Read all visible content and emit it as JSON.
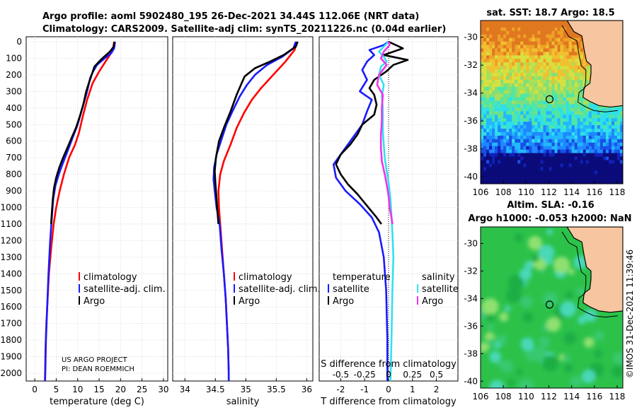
{
  "header": {
    "line1": "Argo profile: aoml 5902480_195 26-Dec-2021 34.44S 112.06E (NRT data)",
    "line2": "Climatology: CARS2009. Satellite-adj clim: synTS_20211226.nc (0.04d earlier)"
  },
  "colors": {
    "climatology": "#ff0000",
    "satellite": "#1a1aff",
    "argo": "#000000",
    "sat_cyan": "#33e0ee",
    "argo_magenta": "#ee33ee",
    "land": "#f7c59f"
  },
  "chart_data": [
    {
      "type": "line",
      "panel": "temperature",
      "xlabel": "temperature (deg C)",
      "xlim": [
        -2,
        31
      ],
      "xticks": [
        "0",
        "5",
        "10",
        "15",
        "20",
        "25",
        "30"
      ],
      "ylim": [
        0,
        2050
      ],
      "yticks": [
        "0",
        "100",
        "200",
        "300",
        "400",
        "500",
        "600",
        "700",
        "800",
        "900",
        "1000",
        "1100",
        "1200",
        "1300",
        "1400",
        "1500",
        "1600",
        "1700",
        "1800",
        "1900",
        "2000"
      ],
      "legend": [
        "climatology",
        "satellite-adj. clim.",
        "Argo"
      ],
      "annotation": [
        "US ARGO PROJECT",
        "PI: DEAN ROEMMICH"
      ],
      "series": [
        {
          "name": "climatology",
          "color": "#ff0000",
          "points": [
            [
              18.5,
              0
            ],
            [
              18.3,
              40
            ],
            [
              17.5,
              80
            ],
            [
              16.5,
              120
            ],
            [
              15,
              180
            ],
            [
              13.5,
              250
            ],
            [
              12.2,
              350
            ],
            [
              11.2,
              450
            ],
            [
              10.3,
              550
            ],
            [
              9.4,
              620
            ],
            [
              8,
              700
            ],
            [
              6.8,
              800
            ],
            [
              5.8,
              900
            ],
            [
              5,
              1000
            ],
            [
              4.4,
              1100
            ],
            [
              3.8,
              1250
            ],
            [
              3.3,
              1400
            ],
            [
              3,
              1550
            ],
            [
              2.7,
              1700
            ],
            [
              2.5,
              1850
            ],
            [
              2.4,
              2000
            ],
            [
              2.35,
              2050
            ]
          ]
        },
        {
          "name": "satellite-adj. clim.",
          "color": "#1a1aff",
          "points": [
            [
              18.7,
              0
            ],
            [
              18.5,
              40
            ],
            [
              17.8,
              70
            ],
            [
              16.3,
              100
            ],
            [
              14.5,
              140
            ],
            [
              13.6,
              180
            ],
            [
              12.9,
              220
            ],
            [
              12.2,
              300
            ],
            [
              11.1,
              400
            ],
            [
              10,
              500
            ],
            [
              8.8,
              580
            ],
            [
              7.8,
              650
            ],
            [
              6.6,
              730
            ],
            [
              5.6,
              800
            ],
            [
              4.8,
              870
            ],
            [
              4.3,
              950
            ],
            [
              4,
              1050
            ],
            [
              3.6,
              1200
            ],
            [
              3.2,
              1400
            ],
            [
              2.9,
              1600
            ],
            [
              2.6,
              1800
            ],
            [
              2.45,
              2000
            ],
            [
              2.4,
              2050
            ]
          ]
        },
        {
          "name": "Argo",
          "color": "#000000",
          "points": [
            [
              18.6,
              0
            ],
            [
              18.4,
              30
            ],
            [
              17.5,
              60
            ],
            [
              16.2,
              90
            ],
            [
              15,
              120
            ],
            [
              13.9,
              150
            ],
            [
              13.4,
              190
            ],
            [
              12.6,
              250
            ],
            [
              12,
              300
            ],
            [
              11.3,
              380
            ],
            [
              10.5,
              450
            ],
            [
              9.6,
              520
            ],
            [
              8.6,
              580
            ],
            [
              7.6,
              640
            ],
            [
              6.6,
              700
            ],
            [
              5.7,
              760
            ],
            [
              5,
              820
            ],
            [
              4.5,
              880
            ],
            [
              4.2,
              950
            ],
            [
              4,
              1020
            ],
            [
              3.8,
              1100
            ]
          ]
        }
      ]
    },
    {
      "type": "line",
      "panel": "salinity",
      "xlabel": "salinity",
      "xlim": [
        33.8,
        36.1
      ],
      "xticks": [
        "34",
        "34.5",
        "35",
        "35.5",
        "36"
      ],
      "ylim": [
        0,
        2050
      ],
      "legend": [
        "climatology",
        "satellite-adj. clim.",
        "Argo"
      ],
      "series": [
        {
          "name": "climatology",
          "color": "#ff0000",
          "points": [
            [
              35.84,
              0
            ],
            [
              35.8,
              50
            ],
            [
              35.65,
              120
            ],
            [
              35.45,
              200
            ],
            [
              35.25,
              280
            ],
            [
              35.1,
              350
            ],
            [
              34.97,
              430
            ],
            [
              34.85,
              520
            ],
            [
              34.75,
              620
            ],
            [
              34.64,
              720
            ],
            [
              34.58,
              800
            ],
            [
              34.55,
              900
            ],
            [
              34.56,
              1000
            ],
            [
              34.58,
              1100
            ],
            [
              34.61,
              1250
            ],
            [
              34.64,
              1400
            ],
            [
              34.67,
              1550
            ],
            [
              34.69,
              1700
            ],
            [
              34.71,
              1850
            ],
            [
              34.72,
              2000
            ],
            [
              34.72,
              2050
            ]
          ]
        },
        {
          "name": "satellite-adj. clim.",
          "color": "#1a1aff",
          "points": [
            [
              35.82,
              0
            ],
            [
              35.78,
              40
            ],
            [
              35.6,
              90
            ],
            [
              35.35,
              140
            ],
            [
              35.15,
              200
            ],
            [
              35.02,
              260
            ],
            [
              34.9,
              330
            ],
            [
              34.78,
              420
            ],
            [
              34.68,
              500
            ],
            [
              34.6,
              590
            ],
            [
              34.52,
              680
            ],
            [
              34.48,
              760
            ],
            [
              34.47,
              830
            ],
            [
              34.49,
              900
            ],
            [
              34.52,
              1000
            ],
            [
              34.57,
              1100
            ],
            [
              34.6,
              1250
            ],
            [
              34.64,
              1400
            ],
            [
              34.67,
              1550
            ],
            [
              34.69,
              1700
            ],
            [
              34.71,
              1850
            ],
            [
              34.72,
              2000
            ],
            [
              34.72,
              2050
            ]
          ]
        },
        {
          "name": "Argo",
          "color": "#000000",
          "points": [
            [
              35.85,
              0
            ],
            [
              35.82,
              30
            ],
            [
              35.62,
              80
            ],
            [
              35.4,
              120
            ],
            [
              35.15,
              160
            ],
            [
              34.98,
              210
            ],
            [
              34.92,
              260
            ],
            [
              34.85,
              320
            ],
            [
              34.75,
              420
            ],
            [
              34.64,
              520
            ],
            [
              34.56,
              600
            ],
            [
              34.51,
              700
            ],
            [
              34.49,
              780
            ],
            [
              34.5,
              850
            ],
            [
              34.52,
              950
            ],
            [
              34.54,
              1050
            ],
            [
              34.55,
              1100
            ]
          ]
        }
      ]
    },
    {
      "type": "line",
      "panel": "difference",
      "xlabel": "T difference from climatology",
      "xlim": [
        -2.9,
        2.9
      ],
      "xticks": [
        "-2",
        "-1",
        "0",
        "1",
        "2"
      ],
      "top_axis_label": "S difference from climatology",
      "top_ticks": [
        "-0.5",
        "-0.25",
        "0",
        "0.25",
        "0.5"
      ],
      "ylim": [
        0,
        2050
      ],
      "legend_temperature_title": "temperature",
      "legend_salinity_title": "salinity",
      "legend_temperature": [
        "satellite",
        "Argo"
      ],
      "legend_salinity": [
        "satellite",
        "Argo"
      ],
      "series": [
        {
          "name": "temperature satellite",
          "color": "#1a1aff",
          "points": [
            [
              0,
              0
            ],
            [
              -0.2,
              20
            ],
            [
              -0.8,
              50
            ],
            [
              -0.6,
              80
            ],
            [
              -0.9,
              120
            ],
            [
              -1.1,
              170
            ],
            [
              -0.9,
              230
            ],
            [
              -1.2,
              300
            ],
            [
              -0.7,
              350
            ],
            [
              -0.9,
              420
            ],
            [
              -1.1,
              500
            ],
            [
              -1.5,
              580
            ],
            [
              -1.9,
              660
            ],
            [
              -2.3,
              740
            ],
            [
              -2.2,
              820
            ],
            [
              -1.8,
              900
            ],
            [
              -1.2,
              980
            ],
            [
              -0.7,
              1060
            ],
            [
              -0.4,
              1150
            ],
            [
              -0.2,
              1300
            ],
            [
              -0.1,
              1500
            ],
            [
              -0.05,
              1800
            ],
            [
              -0.05,
              2050
            ]
          ]
        },
        {
          "name": "temperature Argo",
          "color": "#000000",
          "points": [
            [
              0,
              0
            ],
            [
              0.6,
              40
            ],
            [
              -0.2,
              80
            ],
            [
              0.8,
              110
            ],
            [
              0.2,
              140
            ],
            [
              -0.1,
              180
            ],
            [
              -0.6,
              230
            ],
            [
              -0.8,
              280
            ],
            [
              -0.6,
              320
            ],
            [
              -0.5,
              380
            ],
            [
              -0.6,
              440
            ],
            [
              -1.1,
              500
            ],
            [
              -1.3,
              560
            ],
            [
              -1.6,
              620
            ],
            [
              -2.0,
              680
            ],
            [
              -2.2,
              740
            ],
            [
              -2.0,
              800
            ],
            [
              -1.7,
              860
            ],
            [
              -1.3,
              920
            ],
            [
              -0.9,
              990
            ],
            [
              -0.5,
              1060
            ],
            [
              -0.3,
              1100
            ]
          ]
        },
        {
          "name": "salinity satellite",
          "color": "#33e0ee",
          "points": [
            [
              0,
              0
            ],
            [
              -0.05,
              30
            ],
            [
              -0.1,
              60
            ],
            [
              -0.05,
              90
            ],
            [
              -0.02,
              120
            ],
            [
              -0.08,
              150
            ],
            [
              -0.1,
              200
            ],
            [
              -0.05,
              260
            ],
            [
              -0.07,
              330
            ],
            [
              -0.06,
              400
            ],
            [
              -0.06,
              470
            ],
            [
              -0.06,
              540
            ],
            [
              -0.05,
              620
            ],
            [
              -0.04,
              700
            ],
            [
              -0.02,
              780
            ],
            [
              0.0,
              850
            ],
            [
              0.02,
              950
            ],
            [
              0.03,
              1050
            ],
            [
              0.04,
              1150
            ],
            [
              0.05,
              1300
            ],
            [
              0.04,
              1500
            ],
            [
              0.03,
              1800
            ],
            [
              0.02,
              2050
            ]
          ]
        },
        {
          "name": "salinity Argo",
          "color": "#ee33ee",
          "points": [
            [
              0,
              0
            ],
            [
              0.01,
              20
            ],
            [
              -0.05,
              60
            ],
            [
              -0.08,
              100
            ],
            [
              -0.02,
              140
            ],
            [
              -0.1,
              200
            ],
            [
              -0.12,
              260
            ],
            [
              -0.06,
              320
            ],
            [
              -0.07,
              400
            ],
            [
              -0.07,
              480
            ],
            [
              -0.08,
              560
            ],
            [
              -0.08,
              640
            ],
            [
              -0.07,
              720
            ],
            [
              -0.04,
              800
            ],
            [
              -0.02,
              860
            ],
            [
              0.0,
              930
            ],
            [
              0.01,
              1000
            ],
            [
              0.03,
              1060
            ],
            [
              0.04,
              1100
            ]
          ]
        }
      ]
    },
    {
      "type": "heatmap",
      "panel": "sst_map",
      "title": "sat. SST: 18.7 Argo: 18.5",
      "xlim": [
        106,
        118.5
      ],
      "ylim": [
        -40.5,
        -28.8
      ],
      "xticks": [
        "106",
        "108",
        "110",
        "112",
        "114",
        "116",
        "118"
      ],
      "yticks": [
        "-30",
        "-32",
        "-34",
        "-36",
        "-38",
        "-40"
      ],
      "argo_position": [
        112.06,
        -34.44
      ]
    },
    {
      "type": "heatmap",
      "panel": "sla_map",
      "title": "Altim. SLA: -0.16",
      "subtitle": "Argo h1000: -0.053 h2000: NaN",
      "xlim": [
        106,
        118.5
      ],
      "ylim": [
        -40.5,
        -28.8
      ],
      "xticks": [
        "106",
        "108",
        "110",
        "112",
        "114",
        "116",
        "118"
      ],
      "yticks": [
        "-30",
        "-32",
        "-34",
        "-36",
        "-38",
        "-40"
      ],
      "argo_position": [
        112.06,
        -34.44
      ]
    }
  ],
  "footer": {
    "credit": "©IMOS 31-Dec-2021 11:39:46"
  }
}
